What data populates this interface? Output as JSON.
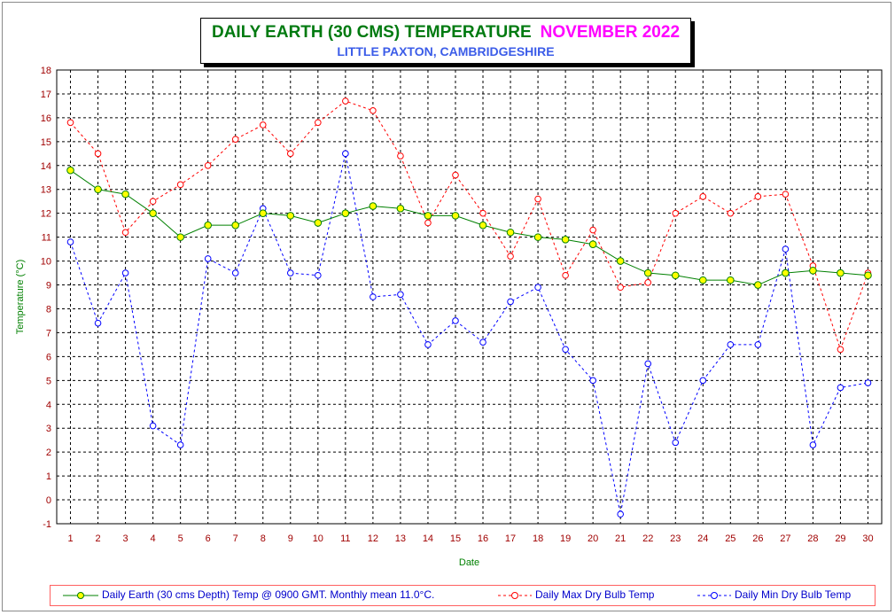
{
  "title": {
    "main": "DAILY EARTH (30 CMS) TEMPERATURE",
    "month": "NOVEMBER 2022",
    "location": "LITTLE PAXTON, CAMBRIDGESHIRE"
  },
  "chart_data": {
    "type": "line",
    "xlabel": "Date",
    "ylabel": "Temperature (°C)",
    "ylim": [
      -1,
      18
    ],
    "xlim": [
      0.5,
      30.5
    ],
    "grid": true,
    "legend_position": "bottom",
    "x": [
      1,
      2,
      3,
      4,
      5,
      6,
      7,
      8,
      9,
      10,
      11,
      12,
      13,
      14,
      15,
      16,
      17,
      18,
      19,
      20,
      21,
      22,
      23,
      24,
      25,
      26,
      27,
      28,
      29,
      30
    ],
    "y_ticks": [
      -1,
      0,
      1,
      2,
      3,
      4,
      5,
      6,
      7,
      8,
      9,
      10,
      11,
      12,
      13,
      14,
      15,
      16,
      17,
      18
    ],
    "series": [
      {
        "name": "Daily Earth (30 cms Depth) Temp @ 0900 GMT. Monthly mean 11.0°C.",
        "color": "#008000",
        "marker_color": "#ffff00",
        "style": "solid",
        "values": [
          13.8,
          13.0,
          12.8,
          12.0,
          11.0,
          11.5,
          11.5,
          12.0,
          11.9,
          11.6,
          12.0,
          12.3,
          12.2,
          11.9,
          11.9,
          11.5,
          11.2,
          11.0,
          10.9,
          10.7,
          10.0,
          9.5,
          9.4,
          9.2,
          9.2,
          9.0,
          9.5,
          9.6,
          9.5,
          9.4
        ]
      },
      {
        "name": "Daily Max Dry Bulb Temp",
        "color": "#ff0000",
        "style": "dashed",
        "values": [
          15.8,
          14.5,
          11.2,
          12.5,
          13.2,
          14.0,
          15.1,
          15.7,
          14.5,
          15.8,
          16.7,
          16.3,
          14.4,
          11.6,
          13.6,
          12.0,
          10.2,
          12.6,
          9.4,
          11.3,
          8.9,
          9.1,
          12.0,
          12.7,
          12.0,
          12.7,
          12.8,
          9.8,
          6.3,
          9.5
        ]
      },
      {
        "name": "Daily Min Dry Bulb Temp",
        "color": "#0000ff",
        "style": "dashed",
        "values": [
          10.8,
          7.4,
          9.5,
          3.1,
          2.3,
          10.1,
          9.5,
          12.2,
          9.5,
          9.4,
          14.5,
          8.5,
          8.6,
          6.5,
          7.5,
          6.6,
          8.3,
          8.9,
          6.3,
          5.0,
          -0.6,
          5.7,
          2.4,
          5.0,
          6.5,
          6.5,
          10.5,
          2.3,
          4.7,
          4.9
        ]
      }
    ]
  }
}
